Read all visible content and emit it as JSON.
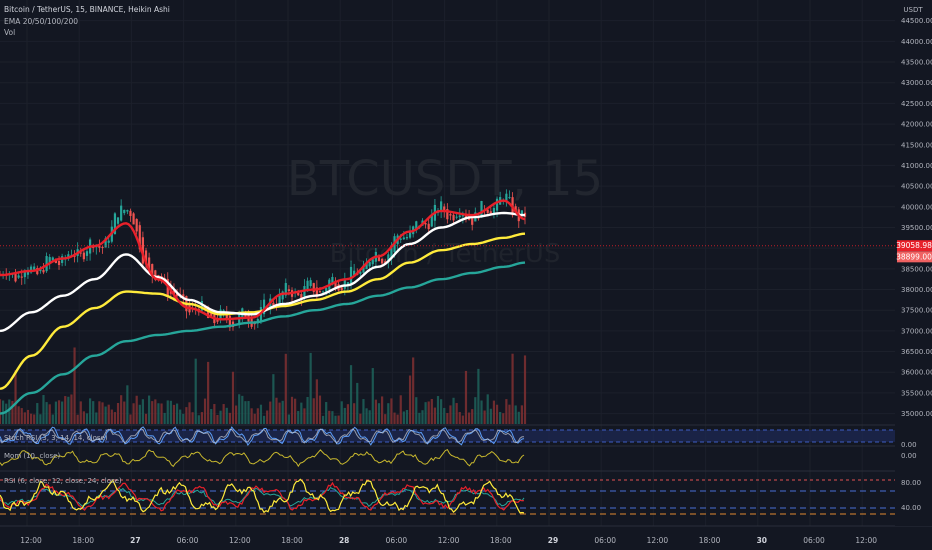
{
  "chart_data": {
    "type": "line",
    "title": "Bitcoin / TetherUS, 15, BINANCE, Heikin Ashi",
    "indicators_legend": [
      "EMA 20/50/100/200",
      "Vol"
    ],
    "watermark": {
      "symbol": "BTCUSDT, 15",
      "name": "Bitcoin / TetherUS"
    },
    "price_axis": {
      "unit": "USDT",
      "ticks": [
        44500,
        44000,
        43500,
        43000,
        42500,
        42000,
        41500,
        41000,
        40500,
        40000,
        39500,
        39000,
        38500,
        38000,
        37500,
        37000,
        36500,
        36000,
        35500,
        35000
      ],
      "ylim": [
        34700,
        45000
      ],
      "current_price": "39058.98",
      "ema_level": "38899.00",
      "current_price_value": 39058.98,
      "ema_level_value": 38899
    },
    "time_axis": {
      "labels": [
        "12:00",
        "18:00",
        "27",
        "06:00",
        "12:00",
        "18:00",
        "28",
        "06:00",
        "12:00",
        "18:00",
        "29",
        "06:00",
        "12:00",
        "18:00",
        "30",
        "06:00",
        "12:00"
      ],
      "bold": [
        "27",
        "28",
        "29",
        "30"
      ]
    },
    "series": [
      {
        "name": "EMA 20",
        "color": "#e8202a",
        "x": [
          0,
          3,
          6,
          9,
          12,
          15,
          18,
          21,
          24,
          27,
          30,
          33,
          36,
          39,
          42,
          45,
          48,
          50
        ],
        "y": [
          38350,
          38450,
          38750,
          39050,
          39600,
          38250,
          37550,
          37280,
          37320,
          37900,
          38000,
          38250,
          38800,
          39400,
          39900,
          39800,
          40150,
          39700
        ]
      },
      {
        "name": "EMA 50",
        "color": "#ffffff",
        "x": [
          0,
          3,
          6,
          9,
          12,
          15,
          18,
          21,
          24,
          27,
          30,
          33,
          36,
          39,
          42,
          45,
          48,
          50
        ],
        "y": [
          37000,
          37450,
          37850,
          38250,
          38850,
          38300,
          37750,
          37450,
          37400,
          37650,
          37850,
          38100,
          38550,
          39100,
          39500,
          39750,
          39850,
          39800
        ]
      },
      {
        "name": "EMA 100",
        "color": "#ffeb3b",
        "x": [
          0,
          3,
          6,
          9,
          12,
          15,
          18,
          21,
          24,
          27,
          30,
          33,
          36,
          39,
          42,
          45,
          48,
          50
        ],
        "y": [
          35600,
          36400,
          37100,
          37550,
          37950,
          37900,
          37650,
          37400,
          37450,
          37600,
          37750,
          37950,
          38250,
          38650,
          38950,
          39100,
          39250,
          39350
        ]
      },
      {
        "name": "EMA 200",
        "color": "#26a69a",
        "x": [
          0,
          3,
          6,
          9,
          12,
          15,
          18,
          21,
          24,
          27,
          30,
          33,
          36,
          39,
          42,
          45,
          48,
          50
        ],
        "y": [
          35000,
          35500,
          35950,
          36400,
          36750,
          36900,
          37000,
          37100,
          37200,
          37350,
          37500,
          37650,
          37850,
          38050,
          38250,
          38400,
          38550,
          38650
        ]
      }
    ],
    "panes": [
      {
        "name": "Stoch RSI",
        "legend": "Stoch RSI (3, 3, 14, 14, close)",
        "axis_label": "0.00"
      },
      {
        "name": "Mom",
        "legend": "Mom (10, close)",
        "axis_label": "0.00"
      },
      {
        "name": "RSI",
        "legend": "RSI (6, close, 12, close, 24, close)",
        "axis_labels": [
          "80.00",
          "40.00"
        ]
      }
    ]
  }
}
